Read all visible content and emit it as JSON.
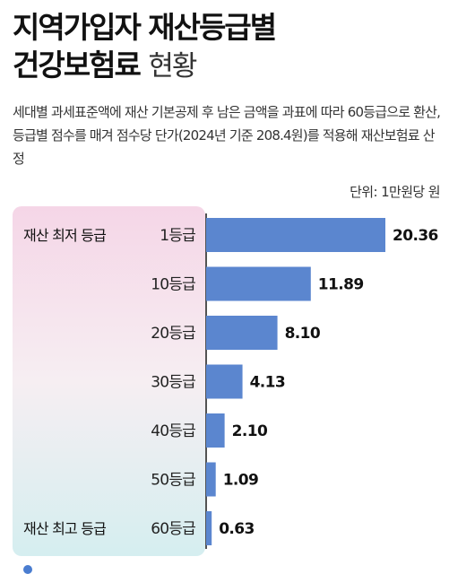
{
  "title_line1": "지역가입자 재산등급별",
  "title_line2": "건강보험료",
  "title_suffix": "현황",
  "description": "세대별 과세표준액에 재산 기본공제 후 남은 금액을 과표에 따라 60등급으로 환산, 등급별 점수를 매겨 점수당 단가(2024년 기준 208.4원)를 적용해 재산보험료 산정",
  "unit": "단위: 1만원당 원",
  "annotations": {
    "lowest": "재산 최저 등급",
    "highest": "재산 최고 등급"
  },
  "colors": {
    "bar": "#5b86cf"
  },
  "chart_data": {
    "type": "bar",
    "orientation": "horizontal",
    "categories": [
      "1등급",
      "10등급",
      "20등급",
      "30등급",
      "40등급",
      "50등급",
      "60등급"
    ],
    "values": [
      20.36,
      11.89,
      8.1,
      4.13,
      2.1,
      1.09,
      0.63
    ],
    "value_labels": [
      "20.36",
      "11.89",
      "8.10",
      "4.13",
      "2.10",
      "1.09",
      "0.63"
    ],
    "title": "지역가입자 재산등급별 건강보험료 현황",
    "xlim": [
      0,
      20.36
    ],
    "grid": false,
    "legend": "none"
  }
}
